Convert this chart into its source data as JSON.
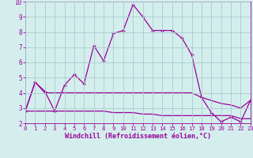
{
  "xlabel": "Windchill (Refroidissement éolien,°C)",
  "background_color": "#d4eeee",
  "grid_color": "#aacccc",
  "line_color": "#990099",
  "xlim": [
    0,
    23
  ],
  "ylim": [
    2,
    10
  ],
  "yticks": [
    2,
    3,
    4,
    5,
    6,
    7,
    8,
    9,
    10
  ],
  "xticks": [
    0,
    1,
    2,
    3,
    4,
    5,
    6,
    7,
    8,
    9,
    10,
    11,
    12,
    13,
    14,
    15,
    16,
    17,
    18,
    19,
    20,
    21,
    22,
    23
  ],
  "line1_x": [
    0,
    1,
    2,
    3,
    4,
    5,
    6,
    7,
    8,
    9,
    10,
    11,
    12,
    13,
    14,
    15,
    16,
    17,
    18,
    19,
    20,
    21,
    22,
    23
  ],
  "line1_y": [
    2.8,
    4.7,
    4.1,
    2.8,
    4.5,
    5.2,
    4.6,
    7.1,
    6.1,
    7.9,
    8.1,
    9.8,
    9.0,
    8.1,
    8.1,
    8.1,
    7.6,
    6.5,
    3.7,
    2.7,
    2.1,
    2.4,
    2.1,
    3.5
  ],
  "line2_x": [
    0,
    1,
    2,
    3,
    4,
    5,
    6,
    7,
    8,
    9,
    10,
    11,
    12,
    13,
    14,
    15,
    16,
    17,
    18,
    19,
    20,
    21,
    22,
    23
  ],
  "line2_y": [
    2.8,
    4.7,
    4.0,
    4.0,
    4.0,
    4.0,
    4.0,
    4.0,
    4.0,
    4.0,
    4.0,
    4.0,
    4.0,
    4.0,
    4.0,
    4.0,
    4.0,
    4.0,
    3.7,
    3.5,
    3.3,
    3.2,
    3.0,
    3.5
  ],
  "line3_x": [
    0,
    1,
    2,
    3,
    4,
    5,
    6,
    7,
    8,
    9,
    10,
    11,
    12,
    13,
    14,
    15,
    16,
    17,
    18,
    19,
    20,
    21,
    22,
    23
  ],
  "line3_y": [
    2.8,
    2.8,
    2.8,
    2.8,
    2.8,
    2.8,
    2.8,
    2.8,
    2.8,
    2.7,
    2.7,
    2.7,
    2.6,
    2.6,
    2.5,
    2.5,
    2.5,
    2.5,
    2.5,
    2.5,
    2.5,
    2.5,
    2.3,
    2.3
  ]
}
